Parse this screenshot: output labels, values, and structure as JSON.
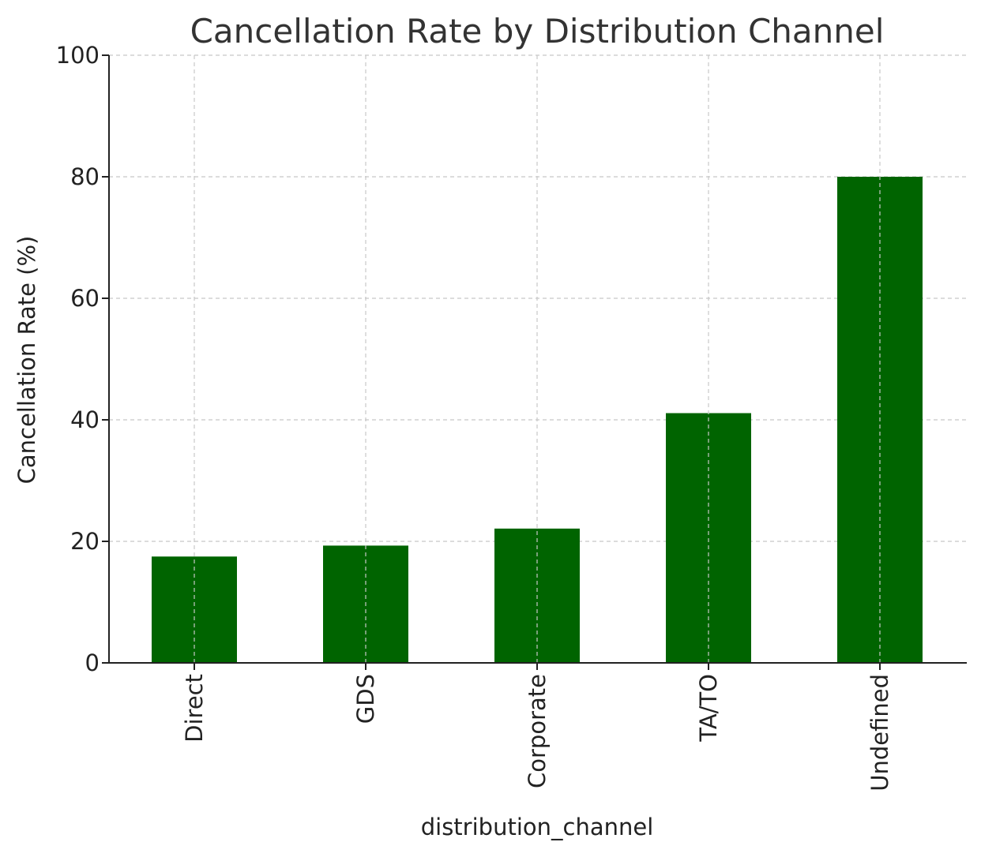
{
  "chart_data": {
    "type": "bar",
    "title": "Cancellation Rate by Distribution Channel",
    "xlabel": "distribution_channel",
    "ylabel": "Cancellation Rate (%)",
    "categories": [
      "Direct",
      "GDS",
      "Corporate",
      "TA/TO",
      "Undefined"
    ],
    "values": [
      17.5,
      19.3,
      22.1,
      41.1,
      80.0
    ],
    "ylim": [
      0,
      100
    ],
    "yticks": [
      0,
      20,
      40,
      60,
      80,
      100
    ],
    "grid": true,
    "bar_color": "#006400"
  }
}
